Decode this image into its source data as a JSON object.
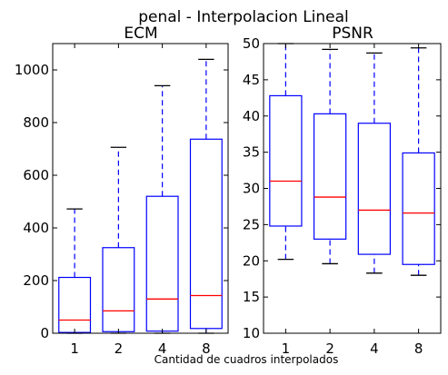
{
  "figure": {
    "suptitle": "penal - Interpolacion Lineal",
    "xlabel": "Cantidad de cuadros interpolados"
  },
  "colors": {
    "box": "#0000ff",
    "median": "#ff0000",
    "whisker": "#0000ff",
    "cap": "#000000",
    "axes": "#000000"
  },
  "chart_data": [
    {
      "type": "boxplot",
      "title": "ECM",
      "categories": [
        "1",
        "2",
        "4",
        "8"
      ],
      "ylim": [
        0,
        1100
      ],
      "yticks": [
        0,
        200,
        400,
        600,
        800,
        1000
      ],
      "boxes": [
        {
          "whislo": 0,
          "q1": 3,
          "med": 50,
          "q3": 212,
          "whishi": 472
        },
        {
          "whislo": 0,
          "q1": 6,
          "med": 85,
          "q3": 325,
          "whishi": 706
        },
        {
          "whislo": 0,
          "q1": 8,
          "med": 130,
          "q3": 520,
          "whishi": 940
        },
        {
          "whislo": 0,
          "q1": 18,
          "med": 143,
          "q3": 737,
          "whishi": 1040
        }
      ],
      "grid": false
    },
    {
      "type": "boxplot",
      "title": "PSNR",
      "categories": [
        "1",
        "2",
        "4",
        "8"
      ],
      "ylim": [
        10,
        50
      ],
      "yticks": [
        10,
        15,
        20,
        25,
        30,
        35,
        40,
        45,
        50
      ],
      "boxes": [
        {
          "whislo": 20.2,
          "q1": 24.8,
          "med": 31.0,
          "q3": 42.8,
          "whishi": 50.0
        },
        {
          "whislo": 19.6,
          "q1": 23.0,
          "med": 28.8,
          "q3": 40.3,
          "whishi": 49.2
        },
        {
          "whislo": 18.3,
          "q1": 20.9,
          "med": 27.0,
          "q3": 39.0,
          "whishi": 48.7
        },
        {
          "whislo": 18.0,
          "q1": 19.5,
          "med": 26.6,
          "q3": 34.9,
          "whishi": 49.4
        }
      ],
      "grid": false
    }
  ]
}
